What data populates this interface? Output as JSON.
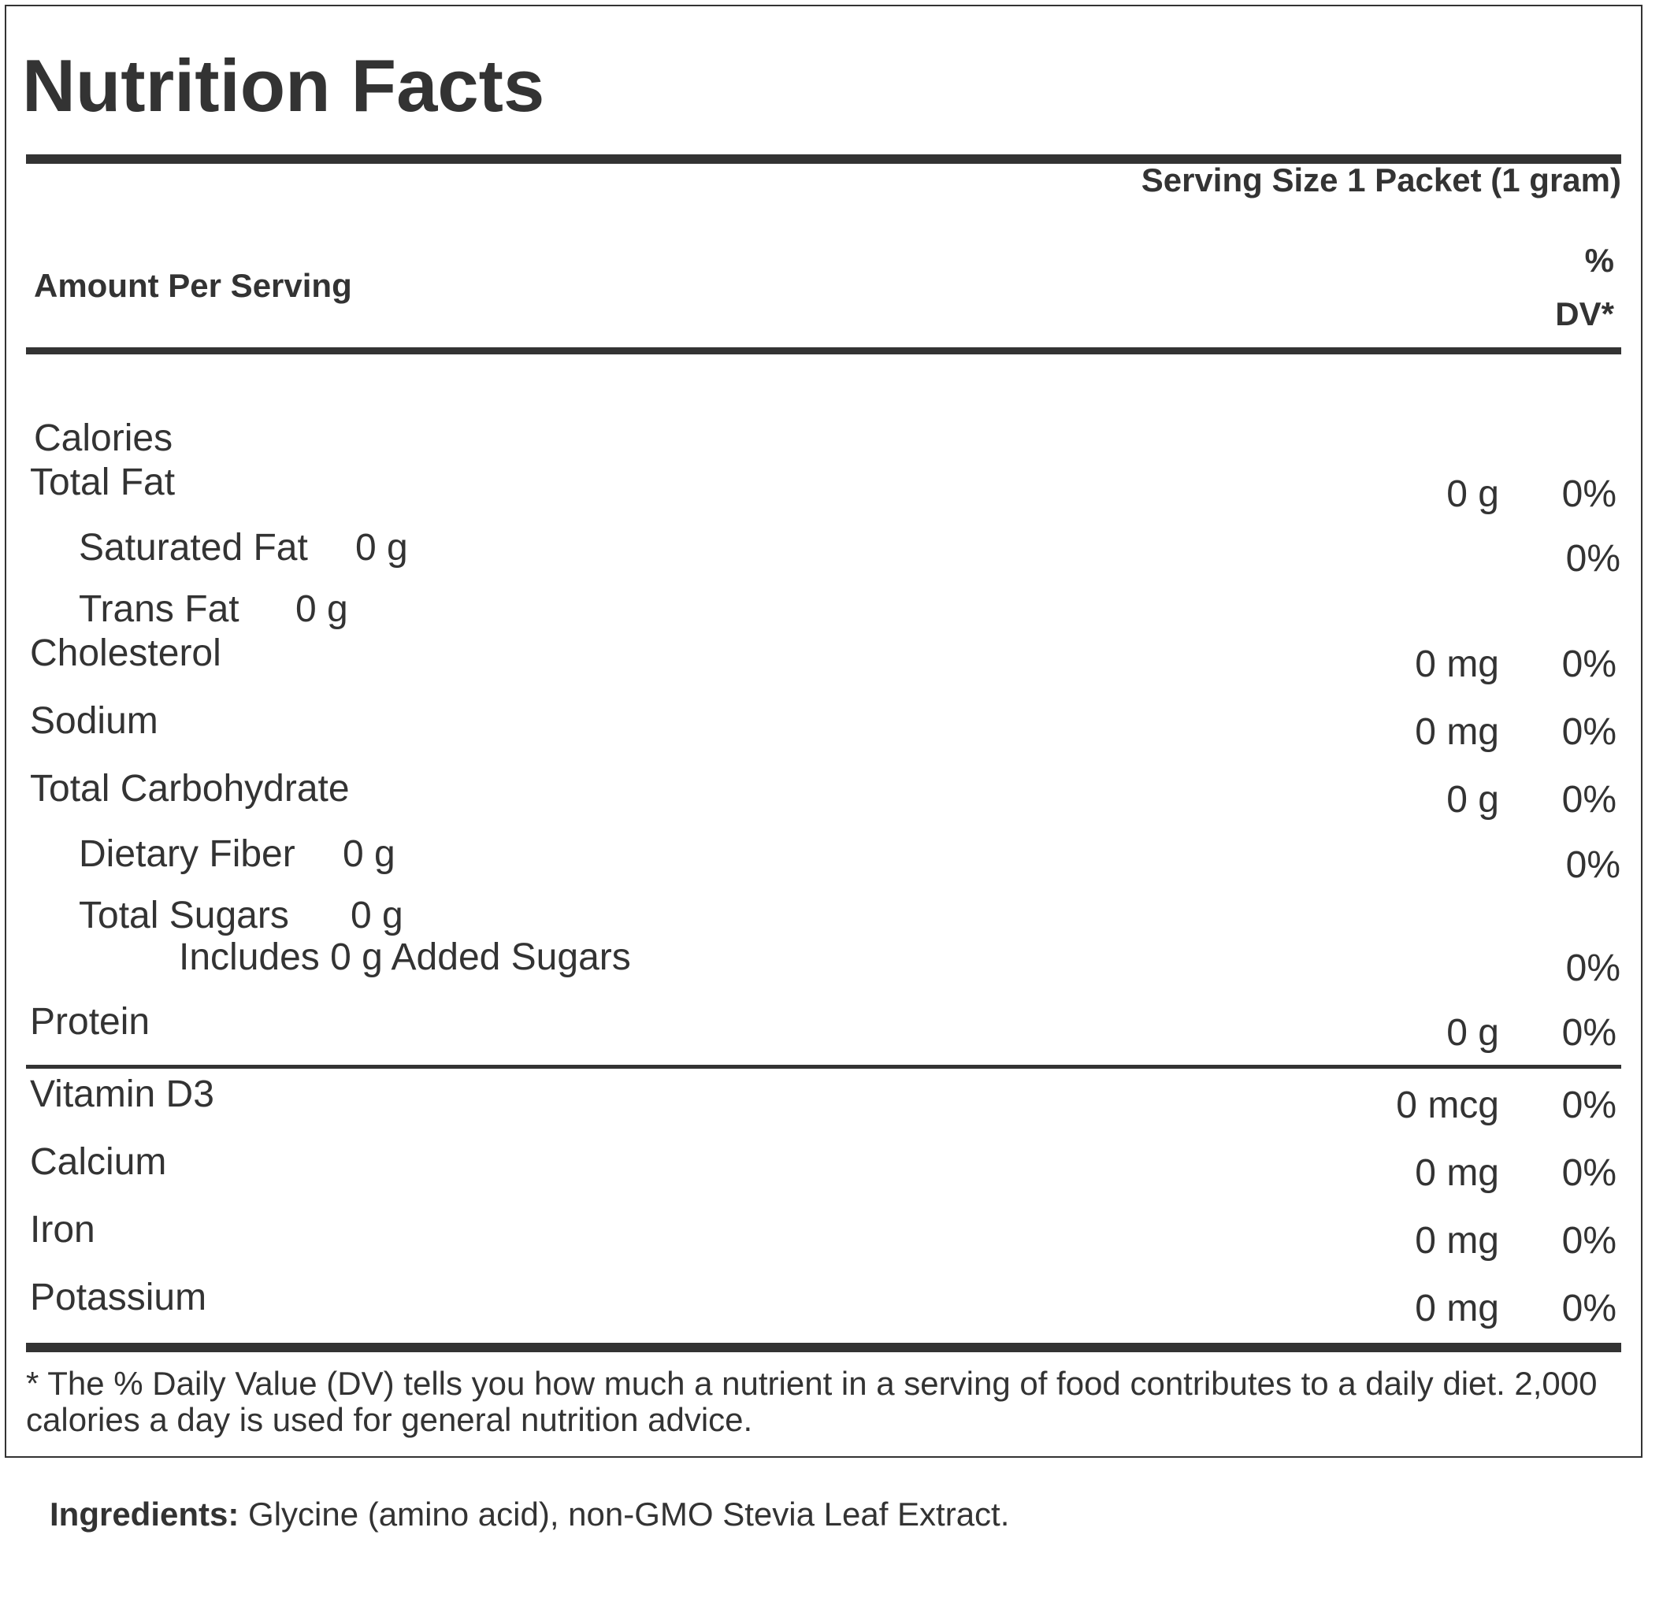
{
  "label": {
    "title": "Nutrition Facts",
    "serving_size": "Serving Size 1 Packet (1 gram)",
    "amount_per_serving": "Amount Per Serving",
    "dv_header_line1": "%",
    "dv_header_line2": "DV*",
    "calories_label": "Calories",
    "rows": [
      {
        "name": "Total Fat",
        "amount": "0 g",
        "dv": "0%"
      },
      {
        "name": "Saturated Fat",
        "amount": "0 g",
        "dv": "0%"
      },
      {
        "name": "Trans Fat",
        "amount": "0 g"
      },
      {
        "name": "Cholesterol",
        "amount": "0 mg",
        "dv": "0%"
      },
      {
        "name": "Sodium",
        "amount": "0 mg",
        "dv": "0%"
      },
      {
        "name": "Total Carbohydrate",
        "amount": "0 g",
        "dv": "0%"
      },
      {
        "name": "Dietary Fiber",
        "amount": "0 g",
        "dv": "0%"
      },
      {
        "name": "Total Sugars",
        "amount": "0 g"
      },
      {
        "name": "Includes 0 g Added Sugars",
        "dv": "0%"
      },
      {
        "name": "Protein",
        "amount": "0 g",
        "dv": "0%"
      }
    ],
    "vitamins": [
      {
        "name": "Vitamin D3",
        "amount": "0 mcg",
        "dv": "0%"
      },
      {
        "name": "Calcium",
        "amount": "0 mg",
        "dv": "0%"
      },
      {
        "name": "Iron",
        "amount": "0 mg",
        "dv": "0%"
      },
      {
        "name": "Potassium",
        "amount": "0 mg",
        "dv": "0%"
      }
    ],
    "footnote": "* The % Daily Value (DV) tells you how much a nutrient in a serving of food contributes to a daily diet. 2,000 calories a day is used for general nutrition advice."
  },
  "ingredients": {
    "label": "Ingredients:",
    "text": " Glycine (amino acid), non-GMO Stevia Leaf Extract."
  },
  "colors": {
    "text": "#333333",
    "rules": "#333333",
    "background": "#ffffff"
  }
}
